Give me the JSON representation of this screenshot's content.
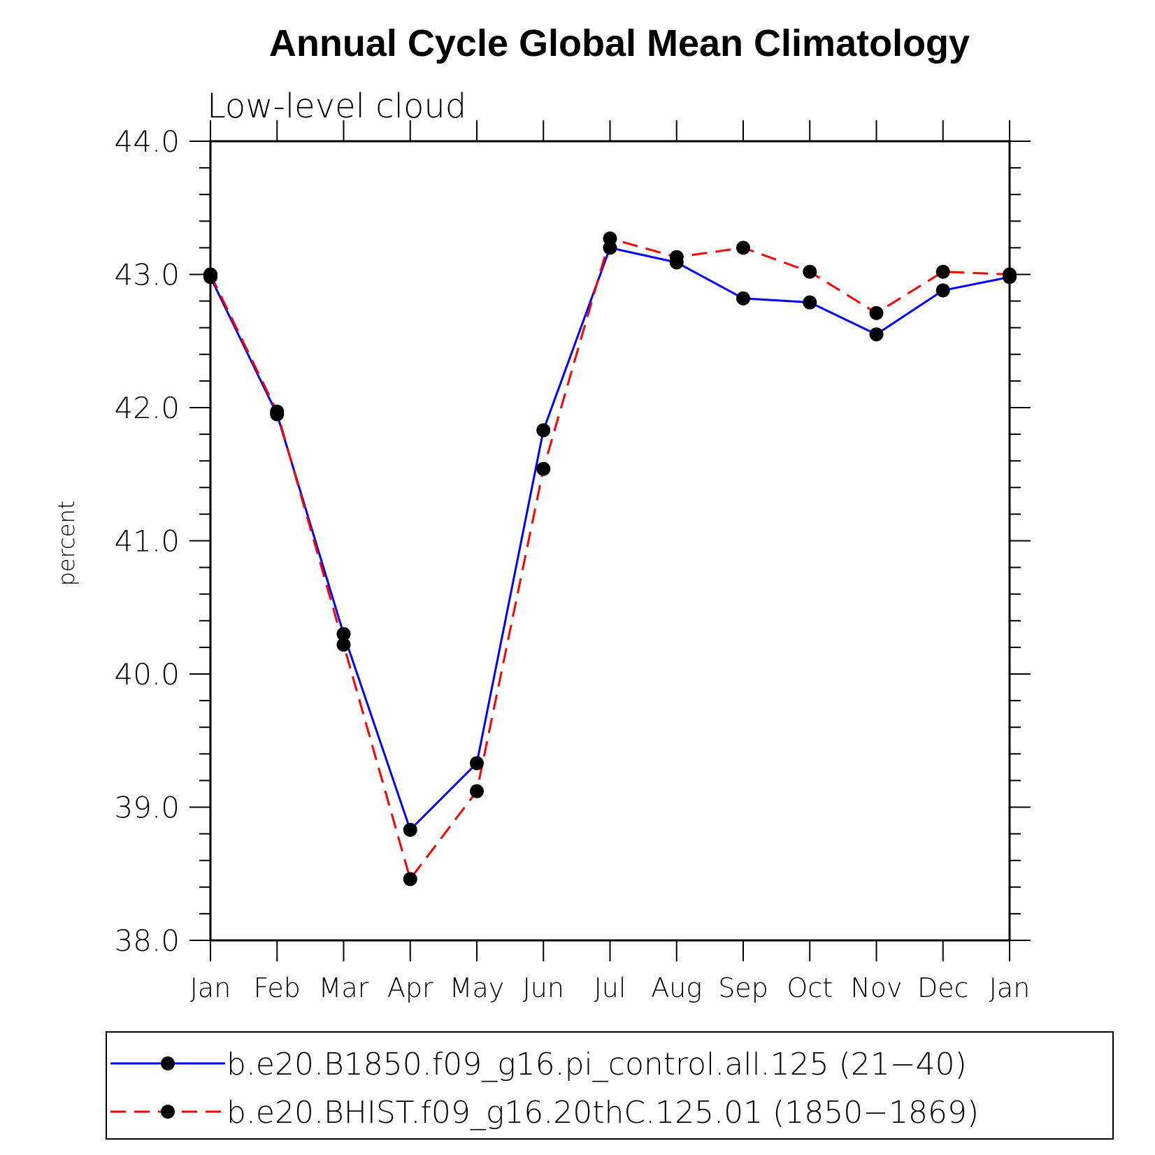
{
  "chart_data": {
    "type": "line",
    "title": "Annual Cycle Global Mean Climatology",
    "subtitle": "Low-level cloud",
    "xlabel": "",
    "ylabel": "percent",
    "ylim": [
      38.0,
      44.0
    ],
    "yticks": [
      "38.0",
      "39.0",
      "40.0",
      "41.0",
      "42.0",
      "43.0",
      "44.0"
    ],
    "categories": [
      "Jan",
      "Feb",
      "Mar",
      "Apr",
      "May",
      "Jun",
      "Jul",
      "Aug",
      "Sep",
      "Oct",
      "Nov",
      "Dec",
      "Jan"
    ],
    "grid": false,
    "legend_position": "bottom",
    "series": [
      {
        "name": "b.e20.B1850.f09_g16.pi_control.all.125 (21−40)",
        "color": "#0000ff",
        "line_style": "solid",
        "marker": "filled-circle",
        "values": [
          42.98,
          41.95,
          40.3,
          38.83,
          39.33,
          41.83,
          43.2,
          43.09,
          42.82,
          42.79,
          42.55,
          42.88,
          42.98
        ]
      },
      {
        "name": "b.e20.BHIST.f09_g16.20thC.125.01 (1850−1869)",
        "color": "#ff0000",
        "line_style": "dashed",
        "marker": "filled-circle",
        "values": [
          43.0,
          41.97,
          40.22,
          38.46,
          39.12,
          41.54,
          43.27,
          43.13,
          43.2,
          43.02,
          42.71,
          43.02,
          43.0
        ]
      }
    ]
  }
}
